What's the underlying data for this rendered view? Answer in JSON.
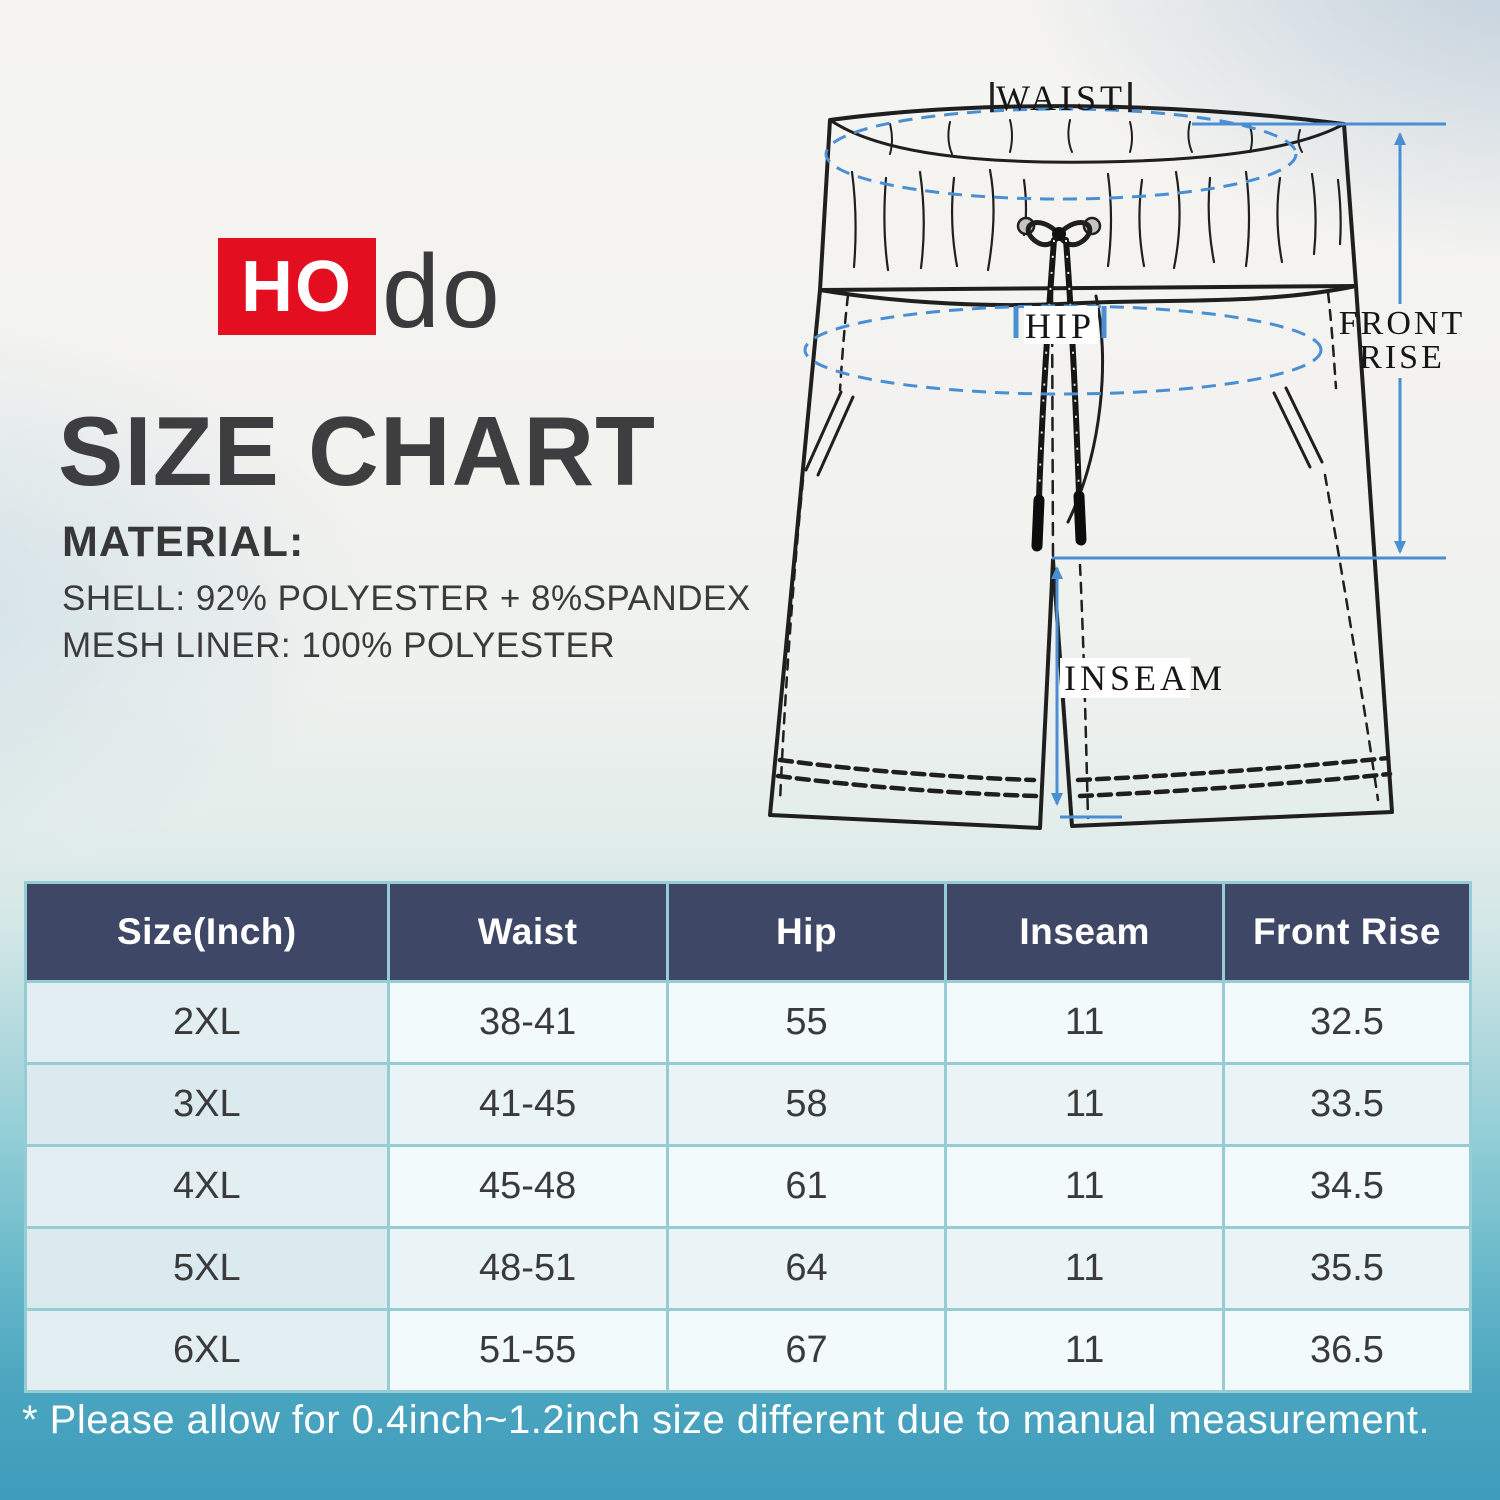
{
  "logo": {
    "box_text": "HO",
    "suffix": "do"
  },
  "title": "SIZE CHART",
  "material": {
    "heading": "MATERIAL:",
    "lines": [
      "SHELL: 92% POLYESTER + 8%SPANDEX",
      "MESH LINER: 100% POLYESTER"
    ]
  },
  "diagram": {
    "labels": {
      "waist": "WAIST",
      "hip": "HIP",
      "inseam": "INSEAM",
      "front_rise_line1": "FRONT",
      "front_rise_line2": "RISE"
    }
  },
  "table": {
    "headers": [
      "Size(Inch)",
      "Waist",
      "Hip",
      "Inseam",
      "Front Rise"
    ],
    "rows": [
      [
        "2XL",
        "38-41",
        "55",
        "11",
        "32.5"
      ],
      [
        "3XL",
        "41-45",
        "58",
        "11",
        "33.5"
      ],
      [
        "4XL",
        "45-48",
        "61",
        "11",
        "34.5"
      ],
      [
        "5XL",
        "48-51",
        "64",
        "11",
        "35.5"
      ],
      [
        "6XL",
        "51-55",
        "67",
        "11",
        "36.5"
      ]
    ]
  },
  "chart_data": {
    "type": "table",
    "columns": [
      "Size(Inch)",
      "Waist",
      "Hip",
      "Inseam",
      "Front Rise"
    ],
    "rows": [
      [
        "2XL",
        "38-41",
        "55",
        "11",
        "32.5"
      ],
      [
        "3XL",
        "41-45",
        "58",
        "11",
        "33.5"
      ],
      [
        "4XL",
        "45-48",
        "61",
        "11",
        "34.5"
      ],
      [
        "5XL",
        "48-51",
        "64",
        "11",
        "35.5"
      ],
      [
        "6XL",
        "51-55",
        "67",
        "11",
        "36.5"
      ]
    ]
  },
  "footnote": "* Please allow for 0.4inch~1.2inch size different due to manual measurement.",
  "colors": {
    "logo_red": "#e30f21",
    "accent_blue": "#4a8fd4",
    "header_bg": "#3e4765",
    "header_text": "#ffffff",
    "table_border": "#96ccd3",
    "note_text": "#ffffff"
  }
}
